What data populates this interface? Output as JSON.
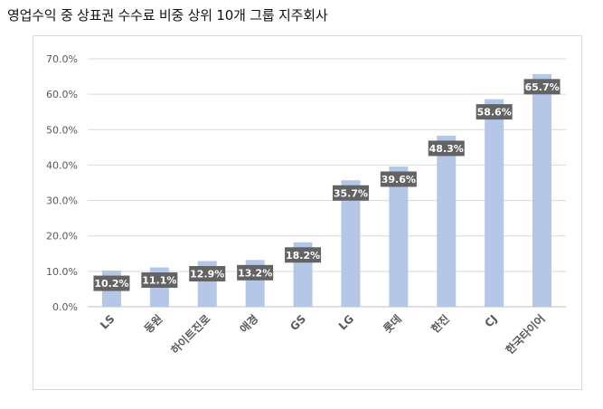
{
  "title": "영업수익 중 상표권 수수료 비중 상위 10개 그룹 지주회사",
  "chart_data": {
    "type": "bar",
    "categories": [
      "LS",
      "동원",
      "하이트진로",
      "애경",
      "GS",
      "LG",
      "롯데",
      "한진",
      "CJ",
      "한국타이어"
    ],
    "values": [
      10.2,
      11.1,
      12.9,
      13.2,
      18.2,
      35.7,
      39.6,
      48.3,
      58.6,
      65.7
    ],
    "data_labels": [
      "10.2%",
      "11.1%",
      "12.9%",
      "13.2%",
      "18.2%",
      "35.7%",
      "39.6%",
      "48.3%",
      "58.6%",
      "65.7%"
    ],
    "y_ticks": [
      "0.0%",
      "10.0%",
      "20.0%",
      "30.0%",
      "40.0%",
      "50.0%",
      "60.0%",
      "70.0%"
    ],
    "ylim": [
      0,
      70
    ],
    "grid": true,
    "legend": false,
    "colors": {
      "bar": "#b4c7e7",
      "label_bg": "#636363",
      "label_text": "#ffffff",
      "grid": "#d9d9d9",
      "axis_text": "#595959"
    }
  }
}
